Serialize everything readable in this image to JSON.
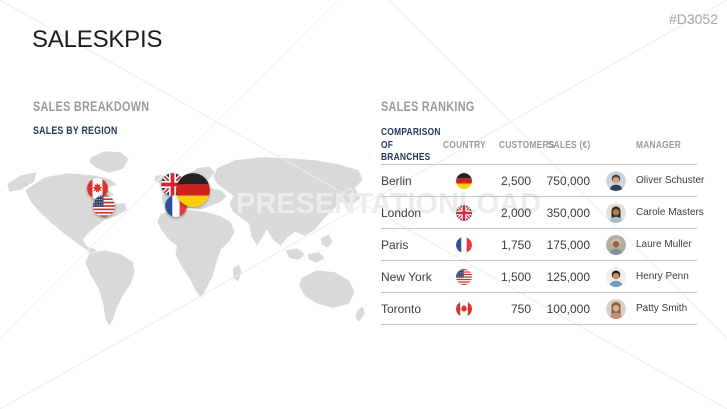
{
  "slide": {
    "title": "SALESKPIS",
    "code": "#D3052",
    "watermark_text": "PRESENTATIONLOAD"
  },
  "sales_breakdown": {
    "section_title": "SALES BREAKDOWN",
    "subtitle": "SALES BY REGION",
    "map_pins": [
      {
        "country": "Canada"
      },
      {
        "country": "USA"
      },
      {
        "country": "United Kingdom"
      },
      {
        "country": "Germany"
      },
      {
        "country": "France"
      }
    ]
  },
  "sales_ranking": {
    "section_title": "SALES RANKING",
    "headers": {
      "branch": "COMPARISON OF BRANCHES",
      "country": "COUNTRY",
      "customers": "CUSTOMERS",
      "sales": "SALES (€)",
      "manager": "MANAGER"
    },
    "rows": [
      {
        "branch": "Berlin",
        "country": "Germany",
        "customers": "2,500",
        "sales": "750,000",
        "manager": "Oliver Schuster"
      },
      {
        "branch": "London",
        "country": "United Kingdom",
        "customers": "2,000",
        "sales": "350,000",
        "manager": "Carole Masters"
      },
      {
        "branch": "Paris",
        "country": "France",
        "customers": "1,750",
        "sales": "175,000",
        "manager": "Laure Muller"
      },
      {
        "branch": "New York",
        "country": "USA",
        "customers": "1,500",
        "sales": "125,000",
        "manager": "Henry Penn"
      },
      {
        "branch": "Toronto",
        "country": "Canada",
        "customers": "750",
        "sales": "100,000",
        "manager": "Patty Smith"
      }
    ]
  },
  "colors": {
    "accent_navy": "#24385a",
    "muted_gray": "#9a9a9a",
    "map_gray": "#d9d9d9",
    "divider": "#c6c6c6",
    "watermark": "#ececec"
  }
}
